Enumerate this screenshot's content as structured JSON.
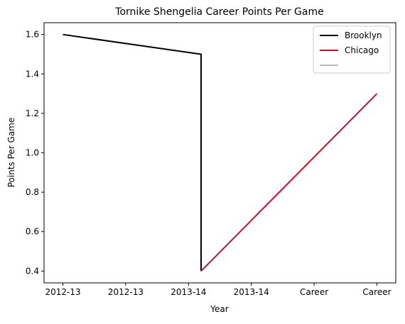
{
  "chart_data": {
    "type": "line",
    "title": "Tornike Shengelia Career Points Per Game",
    "xlabel": "Year",
    "ylabel": "Points Per Game",
    "categories": [
      "2012-13",
      "2012-13",
      "2013-14",
      "2013-14",
      "Career",
      "Career"
    ],
    "xlim": [
      -0.3,
      5.3
    ],
    "ylim": [
      0.34,
      1.66
    ],
    "yticks": [
      0.4,
      0.6,
      0.8,
      1.0,
      1.2,
      1.4,
      1.6
    ],
    "ytick_labels": [
      "0.4",
      "0.6",
      "0.8",
      "1.0",
      "1.2",
      "1.4",
      "1.6"
    ],
    "grid": false,
    "legend_position": "top-right",
    "series": [
      {
        "name": "Brooklyn",
        "color": "#000000",
        "points": [
          {
            "x": 0,
            "y": 1.6
          },
          {
            "x": 2.2,
            "y": 1.5
          },
          {
            "x": 2.2,
            "y": 0.4
          }
        ]
      },
      {
        "name": "Chicago",
        "color": "#c8102e",
        "points": [
          {
            "x": 2.2,
            "y": 0.4
          },
          {
            "x": 5,
            "y": 1.3
          }
        ]
      },
      {
        "name": "",
        "color": "#bbbbbb",
        "points": []
      }
    ]
  }
}
